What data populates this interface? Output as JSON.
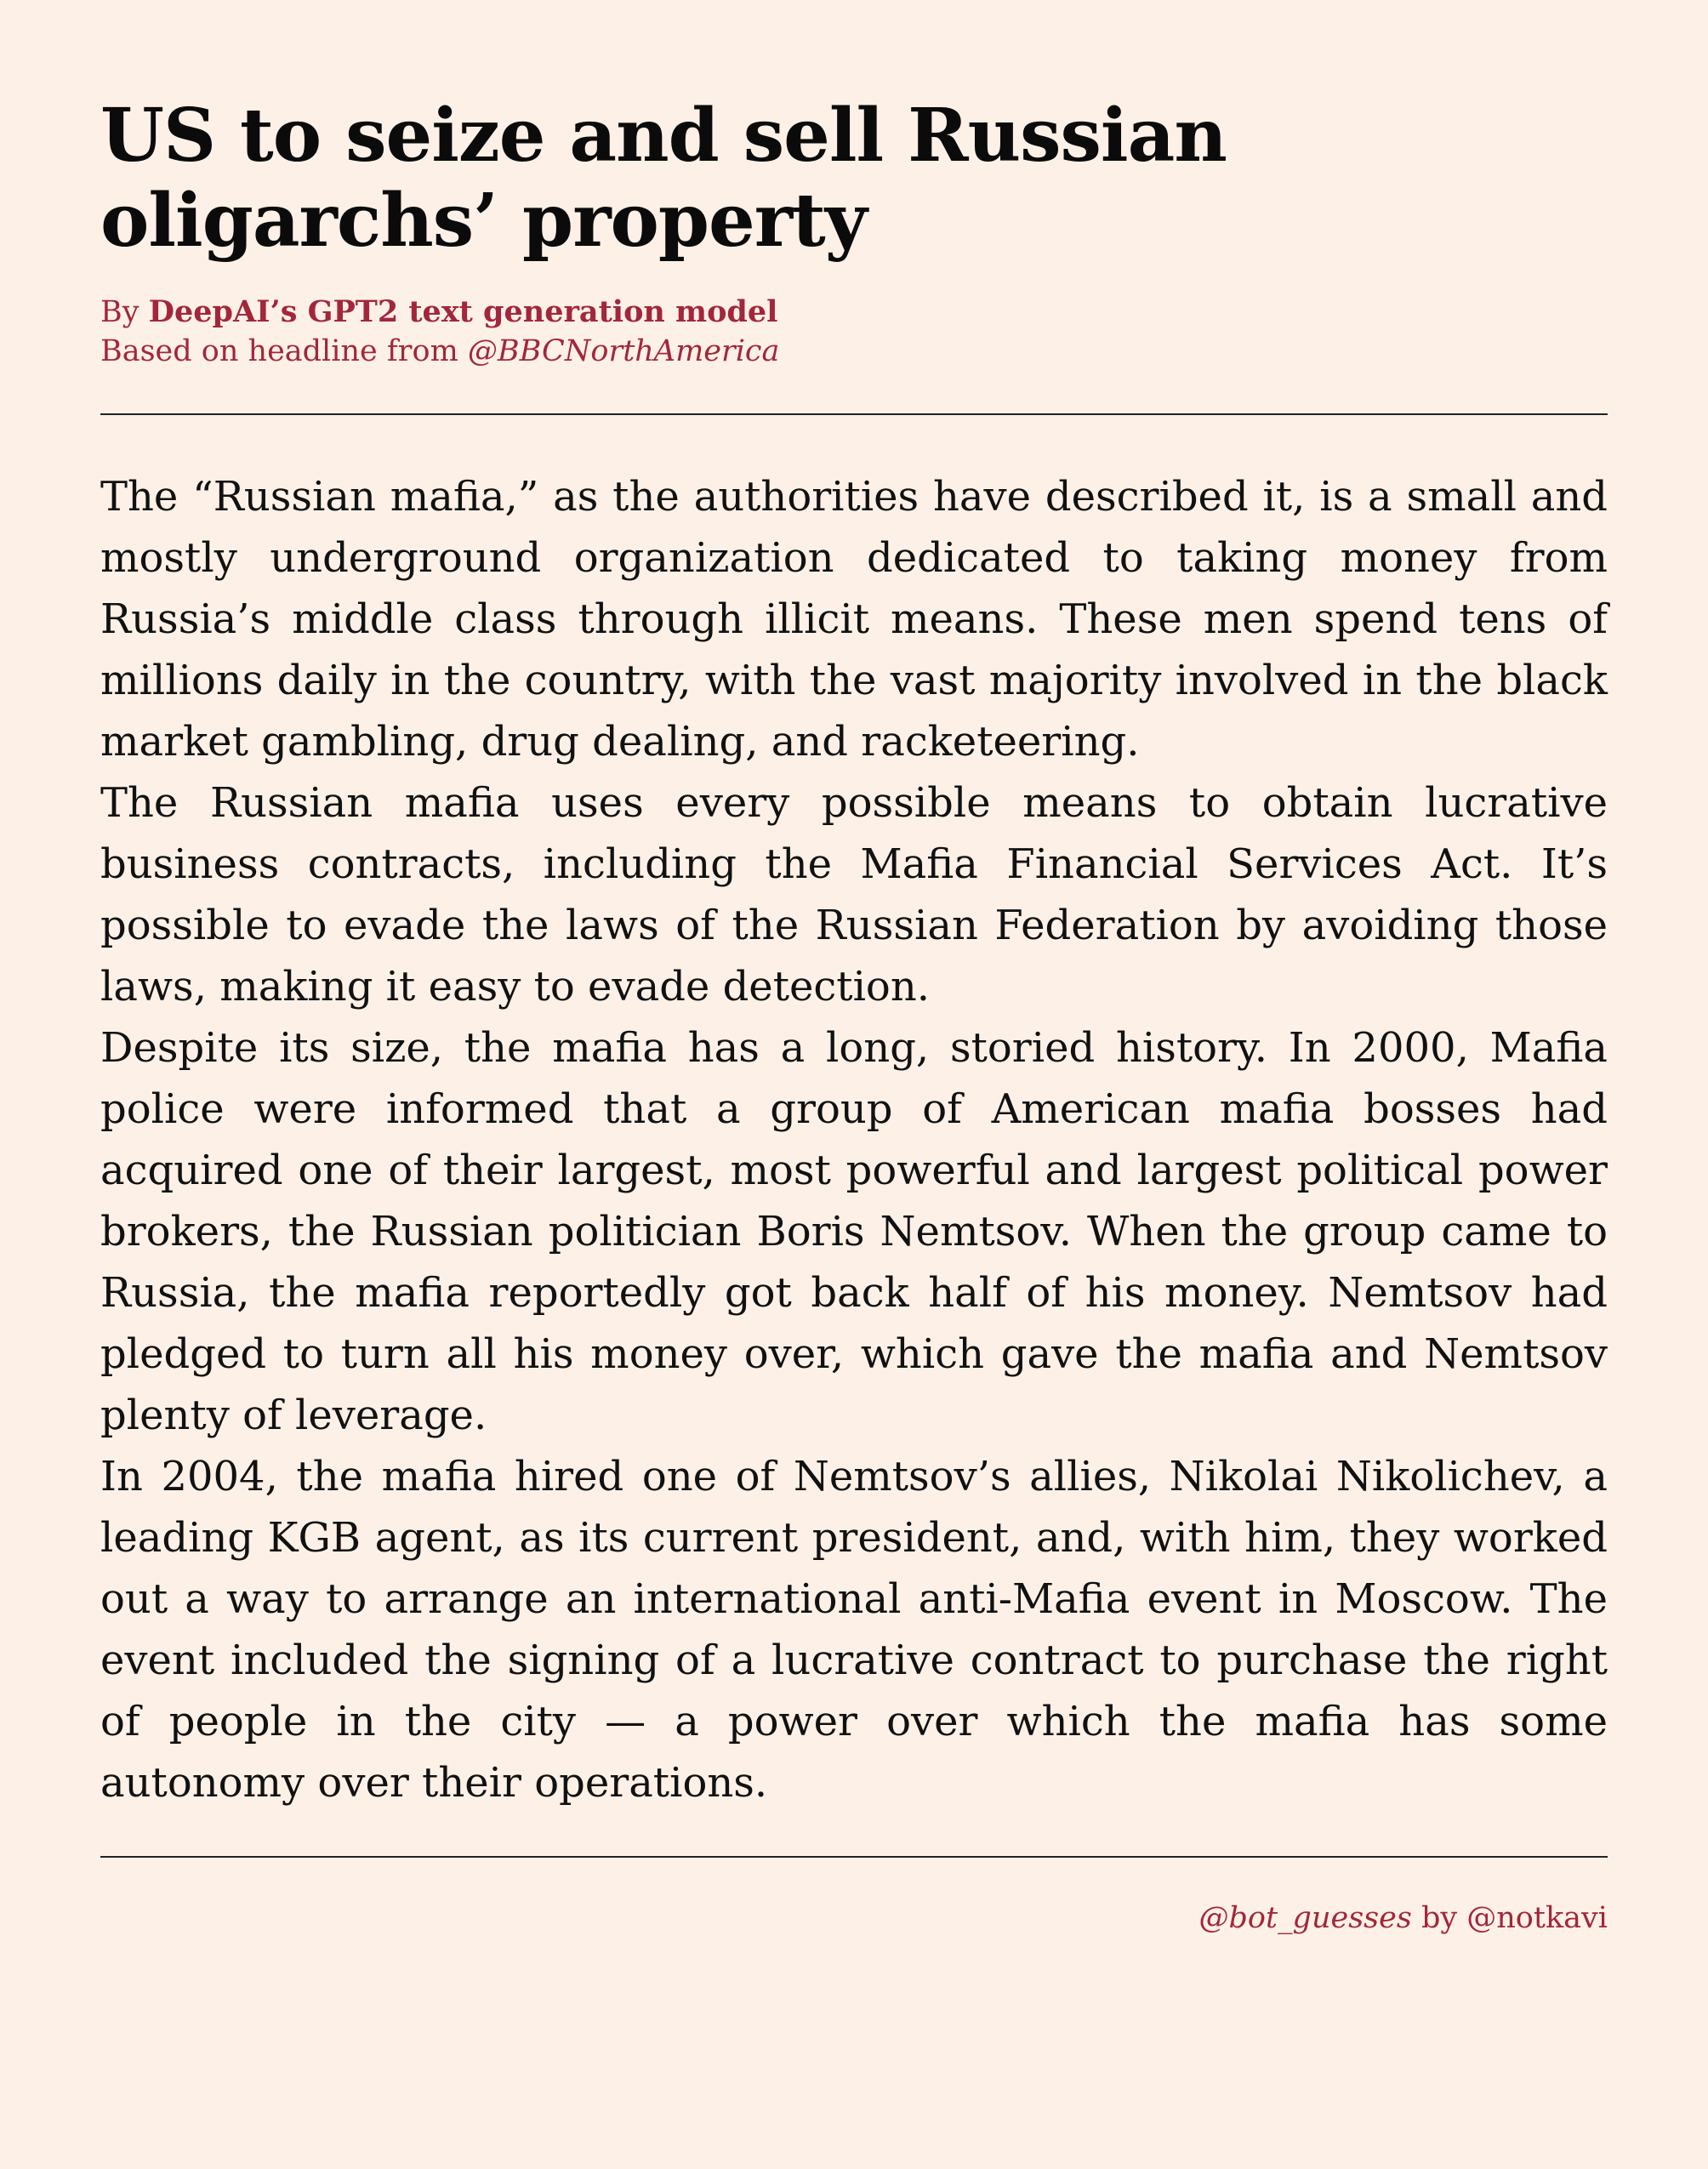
{
  "headline": "US to seize and sell Russian oligarchs’ property",
  "byline": {
    "by_prefix": "By ",
    "author": "DeepAI’s GPT2 text generation model",
    "source_prefix": "Based on headline from ",
    "source_handle": "@BBCNorthAmerica"
  },
  "article": {
    "paragraphs": [
      "The “Russian mafia,” as the authorities have described it, is a small and mostly underground organization dedicated to taking money from Russia’s middle class through illicit means. These men spend tens of millions daily in the country, with the vast majority involved in the black market gambling, drug dealing, and racketeering.",
      "The Russian mafia uses every possible means to obtain lucrative business contracts, including the Mafia Financial Services Act. It’s possible to evade the laws of the Russian Federation by avoiding those laws, making it easy to evade detection.",
      "Despite its size, the mafia has a long, storied history. In 2000, Mafia police were informed that a group of American mafia bosses had acquired one of their largest, most powerful and largest political power brokers, the Russian politician Boris Nemtsov. When the group came to Russia, the mafia reportedly got back half of his money. Nemtsov had pledged to turn all his money over, which gave the mafia and Nemtsov plenty of leverage.",
      "In 2004, the mafia hired one of Nemtsov’s allies, Nikolai Nikolichev, a leading KGB agent, as its current president, and, with him, they worked out a way to arrange an international anti-Mafia event in Moscow. The event included the signing of a lucrative contract to purchase the right of people in the city — a power over which the mafia has some autonomy over their operations."
    ]
  },
  "footer": {
    "handle": "@bot_guesses",
    "by_text": " by ",
    "author_handle": "@notkavi"
  },
  "colors": {
    "background": "#fdf1e7",
    "accent": "#a3263a",
    "text": "#111111"
  }
}
